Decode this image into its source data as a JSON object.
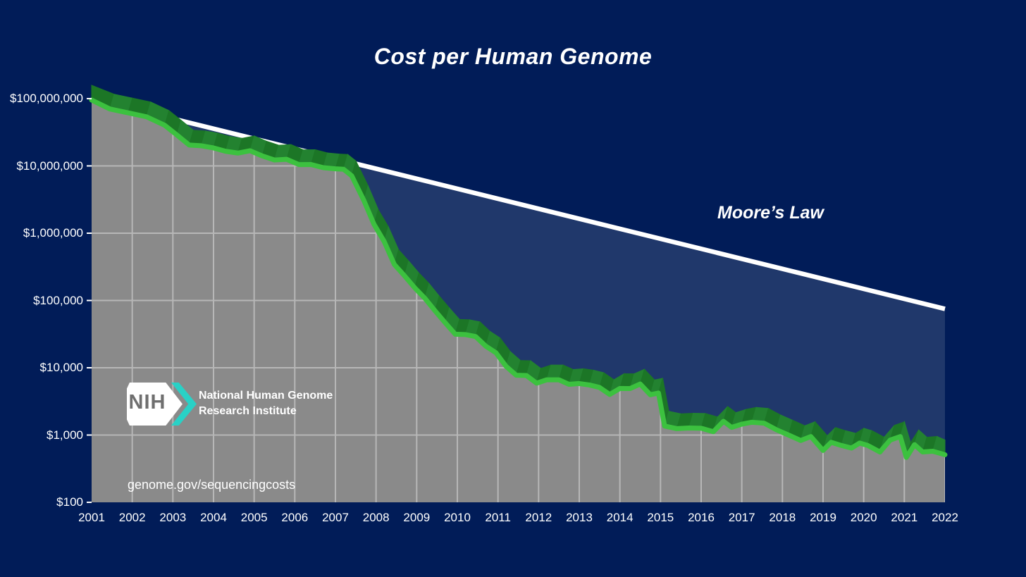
{
  "page": {
    "background": "#011c58"
  },
  "annotations": {
    "moore_label": "Moore’s Law"
  },
  "logo": {
    "acronym": "NIH",
    "org_line1": "National Human Genome",
    "org_line2": "Research Institute"
  },
  "footer": {
    "url": "genome.gov/sequencingcosts"
  },
  "colors": {
    "background": "#011c58",
    "moore_gap_fill": "#20386b",
    "under_curve_fill": "#8a8a8a",
    "grid": "#b7b7b7",
    "moore_line": "#ffffff",
    "cost_line": "#3cc13f",
    "band_dark": "#1c7626",
    "band_dark2": "#238230",
    "tick": "#ffffff",
    "text": "#ffffff",
    "logo_teal": "#29d1c6",
    "logo_gray": "#6f6f6f"
  },
  "chart_data": {
    "type": "area",
    "title": "Cost per Human Genome",
    "subtitle": "",
    "legend": "none",
    "grid": "light gray grid shown only over the shaded area under the cost curve",
    "x_axis": {
      "label": "",
      "ticks": [
        2001,
        2002,
        2003,
        2004,
        2005,
        2006,
        2007,
        2008,
        2009,
        2010,
        2011,
        2012,
        2013,
        2014,
        2015,
        2016,
        2017,
        2018,
        2019,
        2020,
        2021,
        2022
      ]
    },
    "y_axis": {
      "label": "",
      "scale": "log",
      "ticks": [
        {
          "label": "$100,000,000",
          "value": 100000000
        },
        {
          "label": "$10,000,000",
          "value": 10000000
        },
        {
          "label": "$1,000,000",
          "value": 1000000
        },
        {
          "label": "$100,000",
          "value": 100000
        },
        {
          "label": "$10,000",
          "value": 10000
        },
        {
          "label": "$1,000",
          "value": 1000
        },
        {
          "label": "$100",
          "value": 100
        }
      ]
    },
    "xlim": [
      2001,
      2022
    ],
    "ylim": [
      100,
      100000000
    ],
    "series": [
      {
        "name": "Cost per Human Genome",
        "style": "bright green line with dark green 3D band, gray area fill below",
        "points": [
          [
            2001.0,
            95263072
          ],
          [
            2001.45,
            70175437
          ],
          [
            2001.9,
            61448422
          ],
          [
            2002.35,
            53751684
          ],
          [
            2002.8,
            40157554
          ],
          [
            2003.1,
            28780376
          ],
          [
            2003.4,
            20442576
          ],
          [
            2003.7,
            19934346
          ],
          [
            2004.0,
            18519312
          ],
          [
            2004.3,
            16497547
          ],
          [
            2004.6,
            15520158
          ],
          [
            2004.9,
            16815125
          ],
          [
            2005.2,
            14062500
          ],
          [
            2005.5,
            12255340
          ],
          [
            2005.8,
            12537315
          ],
          [
            2006.1,
            10474556
          ],
          [
            2006.4,
            10497842
          ],
          [
            2006.7,
            9408739
          ],
          [
            2007.0,
            9047003
          ],
          [
            2007.2,
            8927342
          ],
          [
            2007.4,
            7147571
          ],
          [
            2007.7,
            3063820
          ],
          [
            2007.95,
            1352982
          ],
          [
            2008.2,
            752080
          ],
          [
            2008.45,
            342502
          ],
          [
            2008.7,
            232735
          ],
          [
            2008.95,
            154714
          ],
          [
            2009.2,
            108065
          ],
          [
            2009.45,
            70333
          ],
          [
            2009.7,
            46774
          ],
          [
            2009.95,
            31512
          ],
          [
            2010.2,
            31125
          ],
          [
            2010.45,
            29092
          ],
          [
            2010.7,
            20963
          ],
          [
            2010.95,
            16712
          ],
          [
            2011.2,
            10497
          ],
          [
            2011.45,
            7743
          ],
          [
            2011.7,
            7666
          ],
          [
            2011.95,
            5901
          ],
          [
            2012.2,
            6618
          ],
          [
            2012.5,
            6618
          ],
          [
            2012.75,
            5671
          ],
          [
            2013.0,
            5826
          ],
          [
            2013.25,
            5550
          ],
          [
            2013.5,
            5096
          ],
          [
            2013.75,
            4008
          ],
          [
            2014.0,
            4920
          ],
          [
            2014.25,
            4905
          ],
          [
            2014.5,
            5731
          ],
          [
            2014.75,
            3970
          ],
          [
            2014.95,
            4211
          ],
          [
            2015.1,
            1363
          ],
          [
            2015.4,
            1245
          ],
          [
            2015.7,
            1271
          ],
          [
            2016.0,
            1263
          ],
          [
            2016.3,
            1121
          ],
          [
            2016.55,
            1600
          ],
          [
            2016.75,
            1300
          ],
          [
            2017.0,
            1450
          ],
          [
            2017.25,
            1550
          ],
          [
            2017.55,
            1500
          ],
          [
            2017.85,
            1200
          ],
          [
            2018.15,
            1000
          ],
          [
            2018.45,
            830
          ],
          [
            2018.7,
            950
          ],
          [
            2019.0,
            590
          ],
          [
            2019.2,
            780
          ],
          [
            2019.45,
            700
          ],
          [
            2019.7,
            640
          ],
          [
            2019.9,
            760
          ],
          [
            2020.1,
            700
          ],
          [
            2020.4,
            560
          ],
          [
            2020.65,
            840
          ],
          [
            2020.9,
            950
          ],
          [
            2021.05,
            465
          ],
          [
            2021.25,
            720
          ],
          [
            2021.45,
            560
          ],
          [
            2021.7,
            575
          ],
          [
            2022.0,
            510
          ]
        ]
      },
      {
        "name": "Moore's Law",
        "style": "straight white line, cost halving every two years",
        "points": [
          [
            2001.0,
            100000000
          ],
          [
            2022.0,
            75000
          ]
        ]
      }
    ]
  }
}
